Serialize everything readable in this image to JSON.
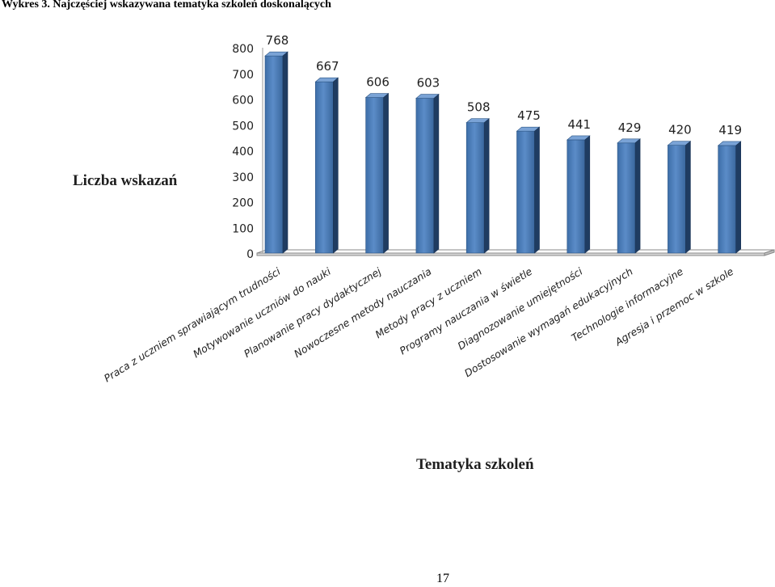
{
  "document": {
    "caption": "Wykres 3. Najczęściej wskazywana tematyka szkoleń doskonalących",
    "page_number": "17"
  },
  "chart_data": {
    "type": "bar",
    "title": "",
    "xlabel": "Tematyka szkoleń",
    "ylabel": "Liczba wskazań",
    "ylim": [
      0,
      800
    ],
    "yticks": [
      0,
      100,
      200,
      300,
      400,
      500,
      600,
      700,
      800
    ],
    "grid": false,
    "legend": "none",
    "bar_color": "#4f81bd",
    "categories": [
      "Praca z uczniem sprawiającym trudności",
      "Motywowanie uczniów do nauki",
      "Planowanie pracy dydaktycznej",
      "Nowoczesne metody nauczania",
      "Metody pracy z uczniem",
      "Programy nauczania w świetle",
      "Diagnozowanie umiejętności",
      "Dostosowanie wymagań edukacyjnych",
      "Technologie informacyjne",
      "Agresja i przemoc w szkole"
    ],
    "values": [
      768,
      667,
      606,
      603,
      508,
      475,
      441,
      429,
      420,
      419
    ]
  }
}
